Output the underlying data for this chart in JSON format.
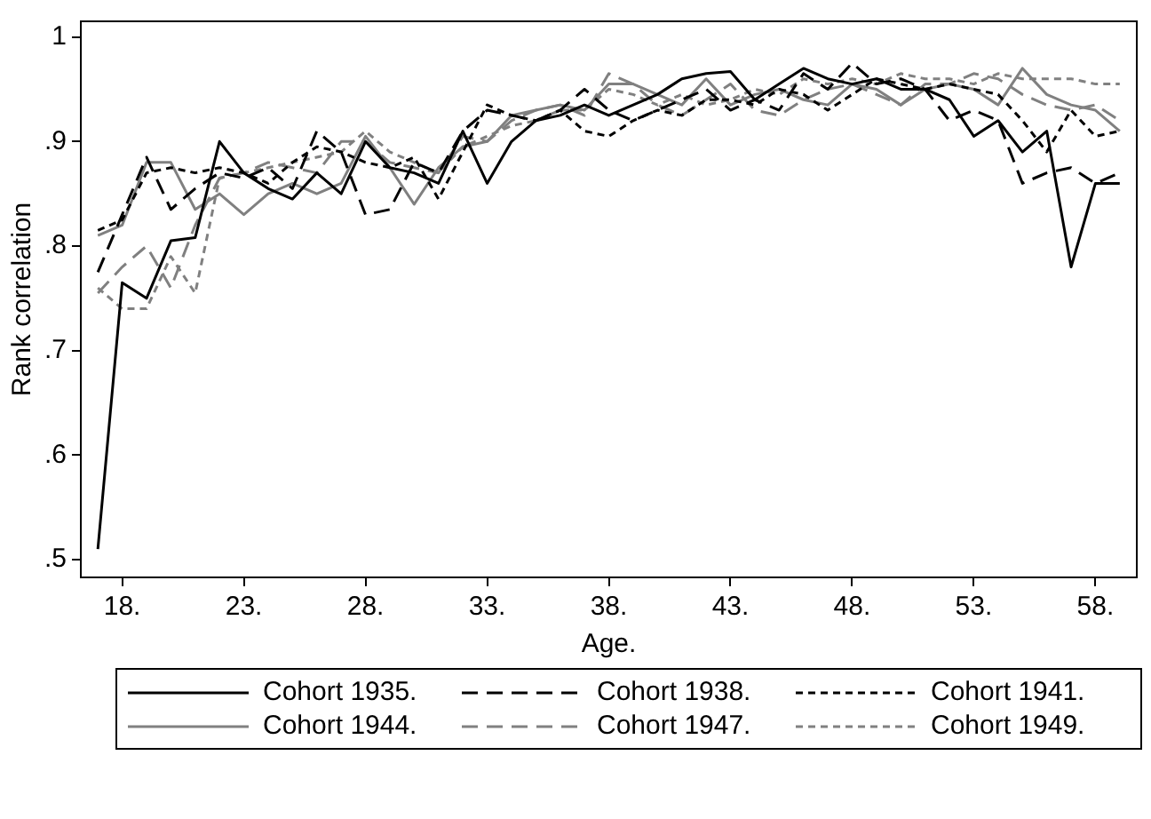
{
  "chart_data": {
    "type": "line",
    "xlabel": "Age.",
    "ylabel": "Rank correlation",
    "x": [
      17,
      18,
      19,
      20,
      21,
      22,
      23,
      24,
      25,
      26,
      27,
      28,
      29,
      30,
      31,
      32,
      33,
      34,
      35,
      36,
      37,
      38,
      39,
      40,
      41,
      42,
      43,
      44,
      45,
      46,
      47,
      48,
      49,
      50,
      51,
      52,
      53,
      54,
      55,
      56,
      57,
      58,
      59
    ],
    "xlim": [
      16.3,
      59.7
    ],
    "xticks": [
      {
        "value": 18,
        "label": "18."
      },
      {
        "value": 23,
        "label": "23."
      },
      {
        "value": 28,
        "label": "28."
      },
      {
        "value": 33,
        "label": "33."
      },
      {
        "value": 38,
        "label": "38."
      },
      {
        "value": 43,
        "label": "43."
      },
      {
        "value": 48,
        "label": "48."
      },
      {
        "value": 53,
        "label": "53."
      },
      {
        "value": 58,
        "label": "58."
      }
    ],
    "ylim": [
      0.483,
      1.015
    ],
    "yticks": [
      {
        "value": 0.5,
        "label": ".5"
      },
      {
        "value": 0.6,
        "label": ".6"
      },
      {
        "value": 0.7,
        "label": ".7"
      },
      {
        "value": 0.8,
        "label": ".8"
      },
      {
        "value": 0.9,
        "label": ".9"
      },
      {
        "value": 1,
        "label": "1"
      }
    ],
    "grid": false,
    "legend": "bottom",
    "marker": "none",
    "series": [
      {
        "name": "Cohort 1935.",
        "color": "#000000",
        "line_style": "solid",
        "values": [
          0.51,
          0.765,
          0.75,
          0.805,
          0.808,
          0.9,
          0.87,
          0.855,
          0.845,
          0.87,
          0.85,
          0.9,
          0.875,
          0.87,
          0.86,
          0.91,
          0.86,
          0.9,
          0.92,
          0.925,
          0.935,
          0.925,
          0.935,
          0.945,
          0.96,
          0.965,
          0.967,
          0.94,
          0.955,
          0.97,
          0.96,
          0.955,
          0.96,
          0.95,
          0.95,
          0.94,
          0.905,
          0.92,
          0.89,
          0.91,
          0.78,
          0.86,
          0.86
        ]
      },
      {
        "name": "Cohort 1938.",
        "color": "#000000",
        "line_style": "dashed",
        "values": [
          0.775,
          0.83,
          0.885,
          0.835,
          0.855,
          0.87,
          0.865,
          0.875,
          0.855,
          0.91,
          0.89,
          0.83,
          0.835,
          0.88,
          0.87,
          0.91,
          0.93,
          0.925,
          0.92,
          0.93,
          0.95,
          0.93,
          0.92,
          0.93,
          0.94,
          0.95,
          0.93,
          0.94,
          0.93,
          0.965,
          0.95,
          0.975,
          0.955,
          0.96,
          0.95,
          0.92,
          0.93,
          0.92,
          0.86,
          0.87,
          0.875,
          0.86,
          0.87
        ]
      },
      {
        "name": "Cohort 1941.",
        "color": "#000000",
        "line_style": "dotted",
        "values": [
          0.815,
          0.825,
          0.87,
          0.875,
          0.87,
          0.875,
          0.87,
          0.86,
          0.88,
          0.895,
          0.89,
          0.88,
          0.875,
          0.885,
          0.845,
          0.89,
          0.935,
          0.925,
          0.92,
          0.93,
          0.91,
          0.905,
          0.92,
          0.93,
          0.925,
          0.94,
          0.94,
          0.935,
          0.95,
          0.945,
          0.93,
          0.945,
          0.96,
          0.955,
          0.95,
          0.955,
          0.95,
          0.945,
          0.92,
          0.89,
          0.93,
          0.905,
          0.91
        ]
      },
      {
        "name": "Cohort 1944.",
        "color": "#808080",
        "line_style": "solid",
        "values": [
          0.81,
          0.82,
          0.88,
          0.88,
          0.835,
          0.85,
          0.83,
          0.85,
          0.86,
          0.85,
          0.86,
          0.905,
          0.875,
          0.84,
          0.875,
          0.895,
          0.9,
          0.925,
          0.93,
          0.935,
          0.93,
          0.955,
          0.955,
          0.945,
          0.935,
          0.96,
          0.935,
          0.945,
          0.95,
          0.94,
          0.935,
          0.955,
          0.95,
          0.935,
          0.95,
          0.955,
          0.95,
          0.935,
          0.97,
          0.945,
          0.935,
          0.93,
          0.91
        ]
      },
      {
        "name": "Cohort 1947.",
        "color": "#808080",
        "line_style": "dashed",
        "values": [
          0.755,
          0.78,
          0.8,
          0.76,
          0.82,
          0.865,
          0.87,
          0.88,
          0.875,
          0.87,
          0.9,
          0.9,
          0.88,
          0.875,
          0.87,
          0.905,
          0.9,
          0.92,
          0.93,
          0.935,
          0.925,
          0.965,
          0.955,
          0.935,
          0.925,
          0.94,
          0.955,
          0.93,
          0.925,
          0.94,
          0.95,
          0.955,
          0.945,
          0.935,
          0.955,
          0.955,
          0.965,
          0.96,
          0.945,
          0.935,
          0.93,
          0.935,
          0.92
        ]
      },
      {
        "name": "Cohort 1949.",
        "color": "#808080",
        "line_style": "dotted",
        "values": [
          0.76,
          0.74,
          0.74,
          0.79,
          0.755,
          0.865,
          0.87,
          0.875,
          0.88,
          0.885,
          0.89,
          0.91,
          0.89,
          0.88,
          0.87,
          0.895,
          0.905,
          0.915,
          0.92,
          0.93,
          0.93,
          0.95,
          0.945,
          0.935,
          0.945,
          0.935,
          0.94,
          0.95,
          0.945,
          0.96,
          0.955,
          0.96,
          0.955,
          0.965,
          0.96,
          0.96,
          0.955,
          0.965,
          0.96,
          0.96,
          0.96,
          0.955,
          0.955
        ]
      }
    ]
  }
}
